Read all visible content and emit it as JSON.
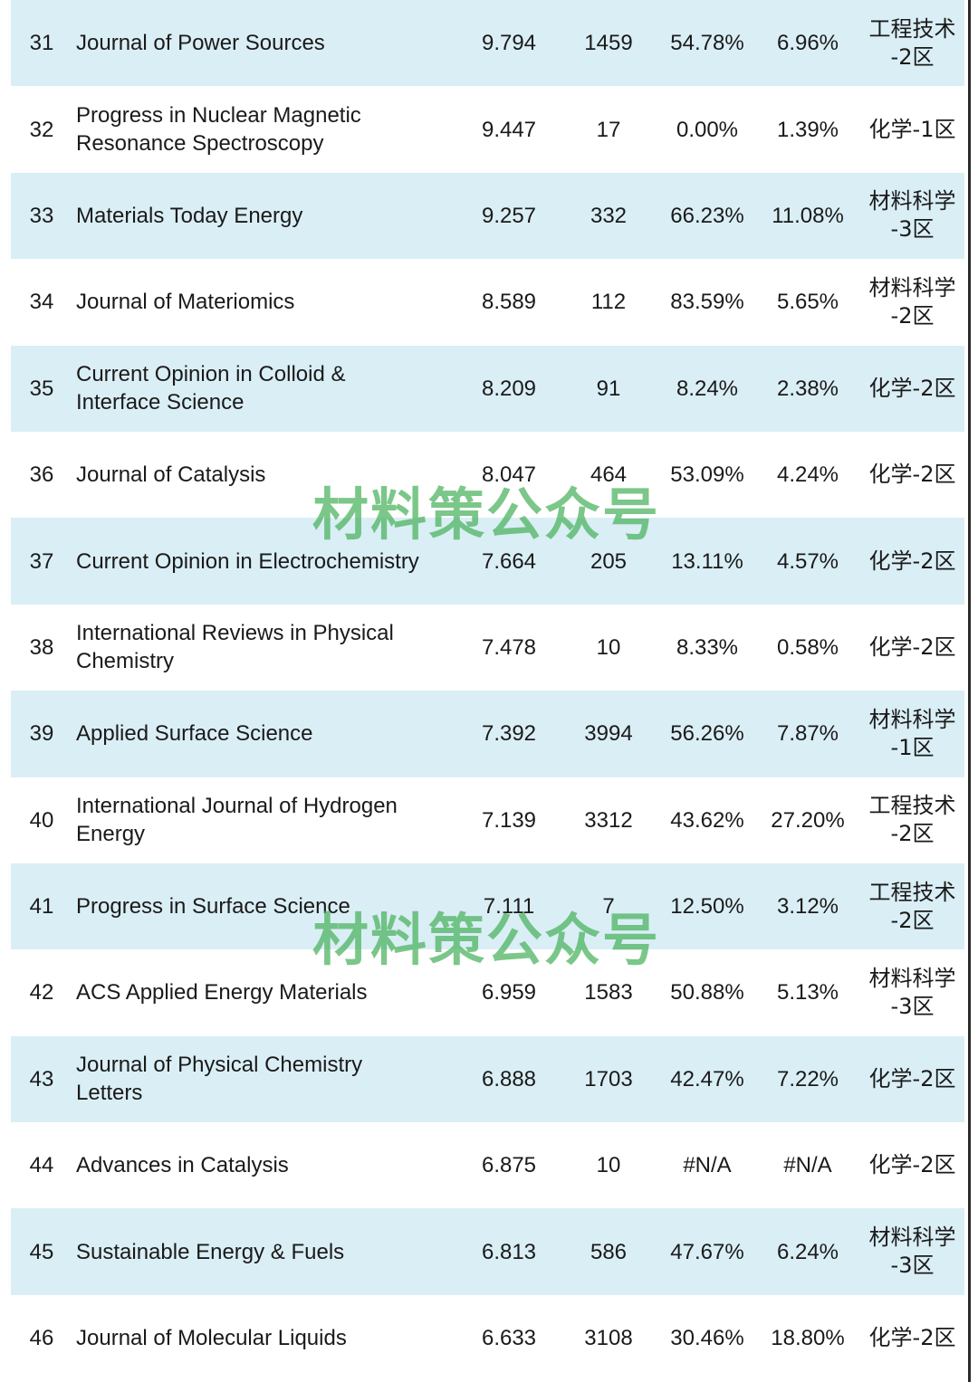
{
  "rows": [
    {
      "rank": "31",
      "name": "Journal of Power Sources",
      "if": "9.794",
      "n": "1459",
      "p1": "54.78%",
      "p2": "6.96%",
      "zone": "工程技术\n-2区"
    },
    {
      "rank": "32",
      "name": "Progress in Nuclear Magnetic\nResonance Spectroscopy",
      "if": "9.447",
      "n": "17",
      "p1": "0.00%",
      "p2": "1.39%",
      "zone": "化学-1区"
    },
    {
      "rank": "33",
      "name": "Materials Today Energy",
      "if": "9.257",
      "n": "332",
      "p1": "66.23%",
      "p2": "11.08%",
      "zone": "材料科学\n-3区"
    },
    {
      "rank": "34",
      "name": "Journal of Materiomics",
      "if": "8.589",
      "n": "112",
      "p1": "83.59%",
      "p2": "5.65%",
      "zone": "材料科学\n-2区"
    },
    {
      "rank": "35",
      "name": "Current Opinion in Colloid &\nInterface Science",
      "if": "8.209",
      "n": "91",
      "p1": "8.24%",
      "p2": "2.38%",
      "zone": "化学-2区"
    },
    {
      "rank": "36",
      "name": "Journal of Catalysis",
      "if": "8.047",
      "n": "464",
      "p1": "53.09%",
      "p2": "4.24%",
      "zone": "化学-2区"
    },
    {
      "rank": "37",
      "name": "Current Opinion in Electrochemistry",
      "if": "7.664",
      "n": "205",
      "p1": "13.11%",
      "p2": "4.57%",
      "zone": "化学-2区"
    },
    {
      "rank": "38",
      "name": "International Reviews in Physical\nChemistry",
      "if": "7.478",
      "n": "10",
      "p1": "8.33%",
      "p2": "0.58%",
      "zone": "化学-2区"
    },
    {
      "rank": "39",
      "name": "Applied Surface Science",
      "if": "7.392",
      "n": "3994",
      "p1": "56.26%",
      "p2": "7.87%",
      "zone": "材料科学\n-1区"
    },
    {
      "rank": "40",
      "name": "International Journal of Hydrogen\nEnergy",
      "if": "7.139",
      "n": "3312",
      "p1": "43.62%",
      "p2": "27.20%",
      "zone": "工程技术\n-2区"
    },
    {
      "rank": "41",
      "name": "Progress in Surface Science",
      "if": "7.111",
      "n": "7",
      "p1": "12.50%",
      "p2": "3.12%",
      "zone": "工程技术\n-2区"
    },
    {
      "rank": "42",
      "name": "ACS Applied Energy Materials",
      "if": "6.959",
      "n": "1583",
      "p1": "50.88%",
      "p2": "5.13%",
      "zone": "材料科学\n-3区"
    },
    {
      "rank": "43",
      "name": "Journal of Physical Chemistry\nLetters",
      "if": "6.888",
      "n": "1703",
      "p1": "42.47%",
      "p2": "7.22%",
      "zone": "化学-2区"
    },
    {
      "rank": "44",
      "name": "Advances in Catalysis",
      "if": "6.875",
      "n": "10",
      "p1": "#N/A",
      "p2": "#N/A",
      "zone": "化学-2区"
    },
    {
      "rank": "45",
      "name": "Sustainable Energy & Fuels",
      "if": "6.813",
      "n": "586",
      "p1": "47.67%",
      "p2": "6.24%",
      "zone": "材料科学\n-3区"
    },
    {
      "rank": "46",
      "name": "Journal of Molecular Liquids",
      "if": "6.633",
      "n": "3108",
      "p1": "30.46%",
      "p2": "18.80%",
      "zone": "化学-2区"
    }
  ],
  "watermark": {
    "text": "材料策公众号"
  },
  "colors": {
    "row_shaded": "#daeef5",
    "row_plain": "#ffffff",
    "watermark": "#48b25c"
  }
}
